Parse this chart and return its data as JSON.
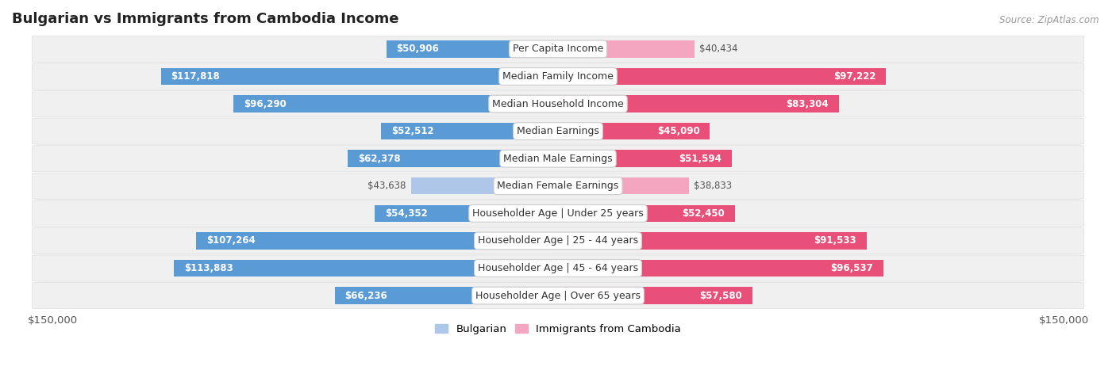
{
  "title": "Bulgarian vs Immigrants from Cambodia Income",
  "source": "Source: ZipAtlas.com",
  "categories": [
    "Per Capita Income",
    "Median Family Income",
    "Median Household Income",
    "Median Earnings",
    "Median Male Earnings",
    "Median Female Earnings",
    "Householder Age | Under 25 years",
    "Householder Age | 25 - 44 years",
    "Householder Age | 45 - 64 years",
    "Householder Age | Over 65 years"
  ],
  "bulgarian": [
    50906,
    117818,
    96290,
    52512,
    62378,
    43638,
    54352,
    107264,
    113883,
    66236
  ],
  "cambodia": [
    40434,
    97222,
    83304,
    45090,
    51594,
    38833,
    52450,
    91533,
    96537,
    57580
  ],
  "max_val": 150000,
  "bulgarian_color_light": "#aec6e8",
  "bulgarian_color_dark": "#5b9bd5",
  "cambodia_color_light": "#f4a6c0",
  "cambodia_color_dark": "#e8507a",
  "bg_row_color": "#f0f0f0",
  "bg_row_alt": "#ffffff",
  "bar_height": 0.62,
  "label_fontsize": 9.0,
  "value_fontsize": 8.5,
  "title_fontsize": 13,
  "legend_fontsize": 9.5,
  "inside_threshold": 0.3
}
